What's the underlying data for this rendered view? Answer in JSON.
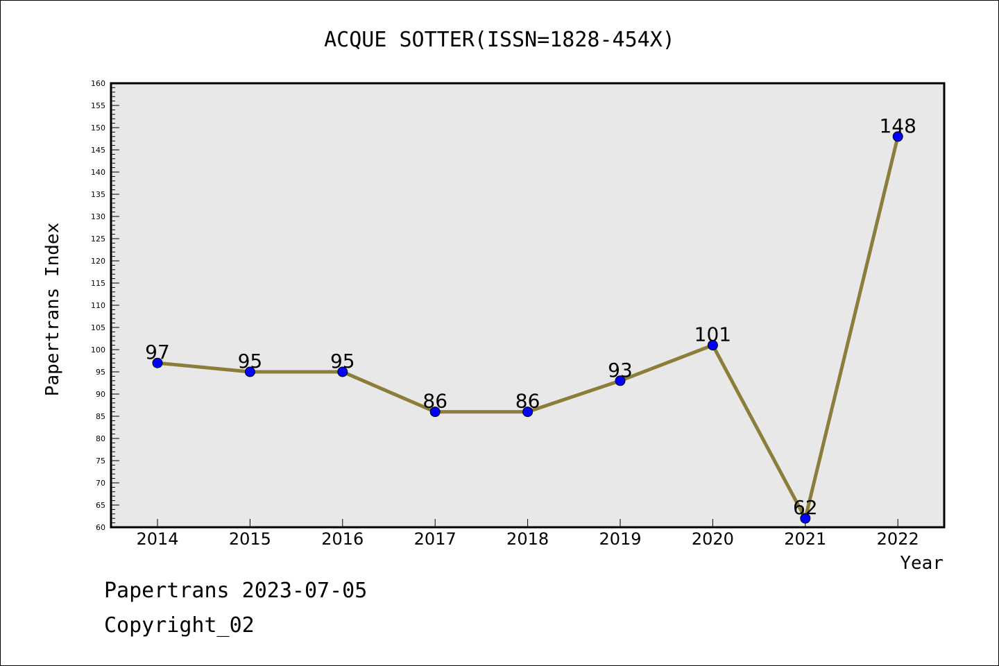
{
  "chart_data": {
    "type": "line",
    "title": "ACQUE SOTTER(ISSN=1828-454X)",
    "xlabel": "Year",
    "ylabel": "Papertrans Index",
    "categories": [
      "2014",
      "2015",
      "2016",
      "2017",
      "2018",
      "2019",
      "2020",
      "2021",
      "2022"
    ],
    "values": [
      97,
      95,
      95,
      86,
      86,
      93,
      101,
      62,
      148
    ],
    "data_labels": [
      "97",
      "95",
      "95",
      "86",
      "86",
      "93",
      "101",
      "62",
      "148"
    ],
    "ylim": [
      60,
      160
    ],
    "y_major_step": 5,
    "y_minor_step": 1,
    "grid": false,
    "line_color": "#8b7d3a",
    "marker_color": "#0000ff",
    "plot_background": "#e8e8e8"
  },
  "footer": {
    "line1": "Papertrans 2023-07-05",
    "line2": "Copyright_02"
  }
}
